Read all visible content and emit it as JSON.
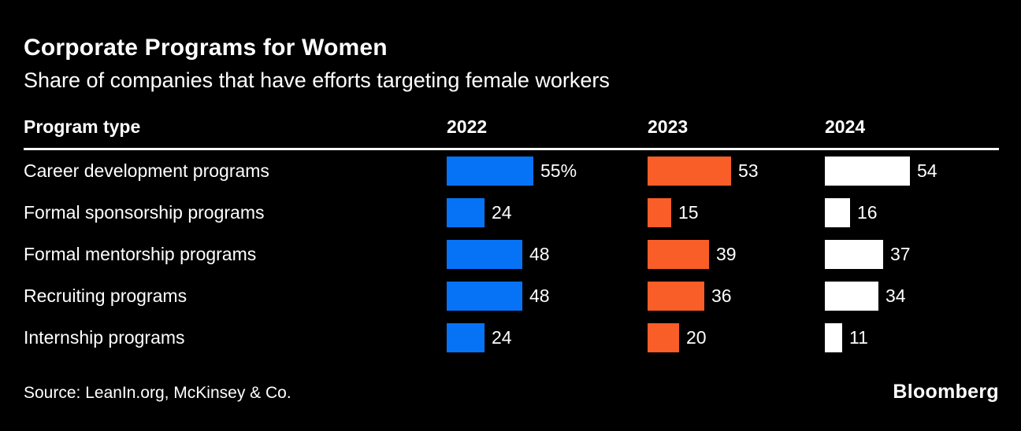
{
  "chart_data": {
    "type": "bar",
    "orientation": "horizontal",
    "title": "Corporate Programs for Women",
    "subtitle": "Share of companies that have efforts targeting female workers",
    "row_header": "Program type",
    "columns": [
      "2022",
      "2023",
      "2024"
    ],
    "series_colors": [
      "#0673f6",
      "#f95d28",
      "#ffffff"
    ],
    "unit": "percent of companies",
    "xlim": [
      0,
      100
    ],
    "grid": false,
    "legend_position": "column-headers",
    "categories": [
      "Career development programs",
      "Formal sponsorship programs",
      "Formal mentorship programs",
      "Recruiting programs",
      "Internship programs"
    ],
    "series": [
      {
        "name": "2022",
        "values": [
          55,
          24,
          48,
          48,
          24
        ]
      },
      {
        "name": "2023",
        "values": [
          53,
          15,
          39,
          36,
          20
        ]
      },
      {
        "name": "2024",
        "values": [
          54,
          16,
          37,
          34,
          11
        ]
      }
    ],
    "rows": [
      {
        "label": "Career development programs",
        "values": [
          55,
          53,
          54
        ],
        "display": [
          "55%",
          "53",
          "54"
        ]
      },
      {
        "label": "Formal sponsorship programs",
        "values": [
          24,
          15,
          16
        ],
        "display": [
          "24",
          "15",
          "16"
        ]
      },
      {
        "label": "Formal mentorship programs",
        "values": [
          48,
          39,
          37
        ],
        "display": [
          "48",
          "39",
          "37"
        ]
      },
      {
        "label": "Recruiting programs",
        "values": [
          48,
          36,
          34
        ],
        "display": [
          "48",
          "36",
          "34"
        ]
      },
      {
        "label": "Internship programs",
        "values": [
          24,
          20,
          11
        ],
        "display": [
          "24",
          "20",
          "11"
        ]
      }
    ],
    "source": "Source: LeanIn.org, McKinsey & Co."
  },
  "footer": {
    "source": "Source: LeanIn.org, McKinsey & Co.",
    "logo": "Bloomberg"
  },
  "colors": {
    "background": "#000000",
    "text": "#ffffff",
    "bar_2022": "#0673f6",
    "bar_2023": "#f95d28",
    "bar_2024": "#ffffff",
    "rule": "#ffffff"
  }
}
